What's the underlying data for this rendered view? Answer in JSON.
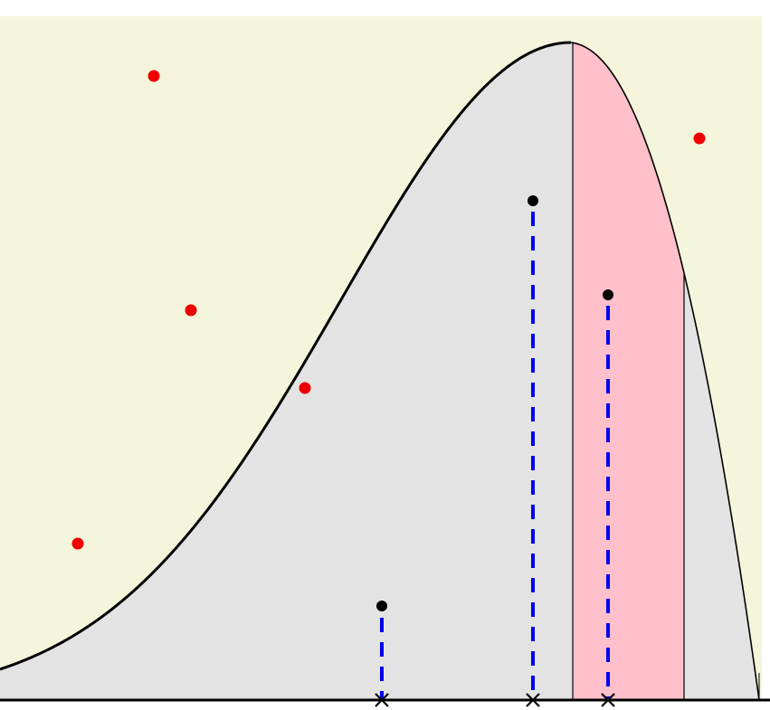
{
  "colors": {
    "page_background": "#ffffff",
    "plot_background": "#f5f5dc",
    "curve_fill": "#e3e3e3",
    "highlight_band": "#ffbfcb",
    "curve_stroke": "#000000",
    "accepted_point": "#000000",
    "rejected_point": "#ee0000",
    "dashed_line": "#0000ee",
    "x_marker": "#000000",
    "baseline": "#000000"
  },
  "diagram": {
    "description_free": true,
    "curve": "skewed-hump",
    "highlighted_band": true,
    "accepted_samples": 3,
    "rejected_samples": 5
  }
}
